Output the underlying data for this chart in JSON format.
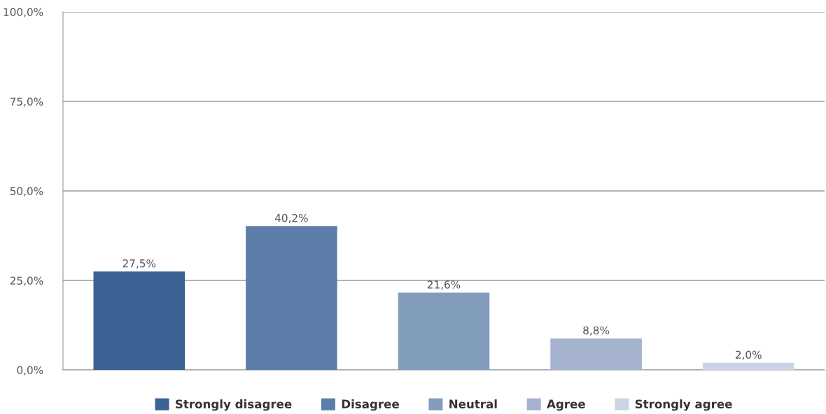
{
  "chart_data": {
    "type": "bar",
    "categories": [
      null,
      null,
      null,
      null,
      null
    ],
    "series": [
      {
        "name": "Strongly disagree",
        "color": "#3a6293",
        "values": [
          27.5,
          null,
          null,
          null,
          null
        ],
        "value_labels": [
          "27,5%",
          null,
          null,
          null,
          null
        ]
      },
      {
        "name": "Disagree",
        "color": "#5c7ea8",
        "values": [
          null,
          40.2,
          null,
          null,
          null
        ],
        "value_labels": [
          null,
          "40,2%",
          null,
          null,
          null
        ]
      },
      {
        "name": "Neutral",
        "color": "#819dbb",
        "values": [
          null,
          null,
          21.6,
          null,
          null
        ],
        "value_labels": [
          null,
          null,
          "21,6%",
          null,
          null
        ]
      },
      {
        "name": "Agree",
        "color": "#a5b3cf",
        "values": [
          null,
          null,
          null,
          8.8,
          null
        ],
        "value_labels": [
          null,
          null,
          null,
          "8,8%",
          null
        ]
      },
      {
        "name": "Strongly agree",
        "color": "#ccd3e5",
        "values": [
          null,
          null,
          null,
          null,
          2.0
        ],
        "value_labels": [
          null,
          null,
          null,
          null,
          "2,0%"
        ]
      }
    ],
    "ylim": [
      0,
      100
    ],
    "yticks": [
      {
        "value": 0,
        "label": "0,0%"
      },
      {
        "value": 25,
        "label": "25,0%"
      },
      {
        "value": 50,
        "label": "50,0%"
      },
      {
        "value": 75,
        "label": "75,0%"
      },
      {
        "value": 100,
        "label": "100,0%"
      }
    ],
    "grid": "y",
    "legend": "bottom"
  }
}
